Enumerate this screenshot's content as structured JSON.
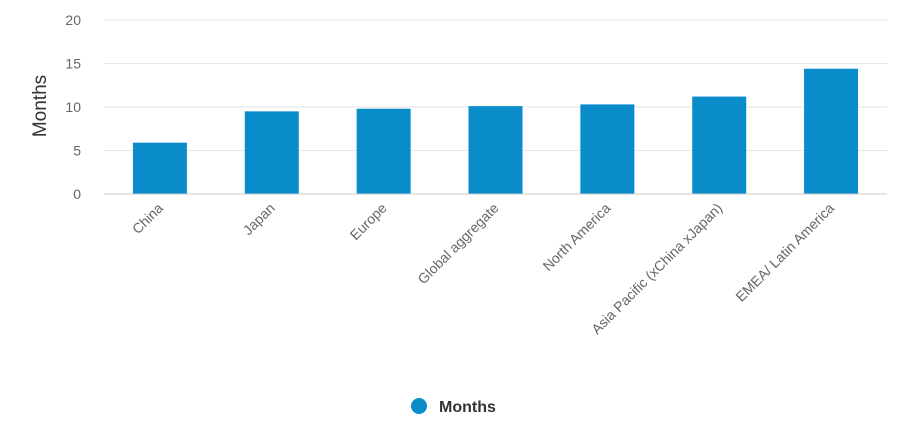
{
  "chart_data": {
    "type": "bar",
    "categories": [
      "China",
      "Japan",
      "Europe",
      "Global aggregate",
      "North America",
      "Asia Pacific (xChina xJapan)",
      "EMEA/ Latin America"
    ],
    "series": [
      {
        "name": "Months",
        "values": [
          5.9,
          9.5,
          9.8,
          10.1,
          10.3,
          11.2,
          14.4
        ],
        "color": "#0a8ccb"
      }
    ],
    "ylabel": "Months",
    "ylim": [
      0,
      20
    ],
    "yticks": [
      0,
      5,
      10,
      15,
      20
    ],
    "grid": true,
    "legend": "bottom-center"
  }
}
